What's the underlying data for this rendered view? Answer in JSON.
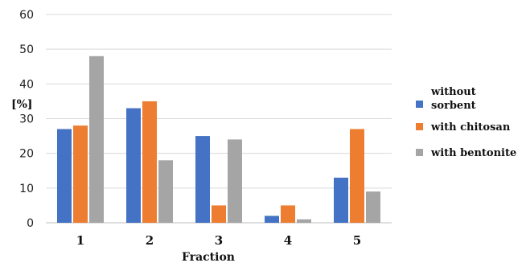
{
  "chart_data": {
    "type": "bar",
    "categories": [
      "1",
      "2",
      "3",
      "4",
      "5"
    ],
    "series": [
      {
        "name": "without sorbent",
        "legend_lines": [
          "without",
          "sorbent"
        ],
        "color": "#4472C4",
        "values": [
          27,
          33,
          25,
          2,
          13
        ]
      },
      {
        "name": "with chitosan",
        "legend_lines": [
          "with chitosan"
        ],
        "color": "#ED7D31",
        "values": [
          28,
          35,
          5,
          5,
          27
        ]
      },
      {
        "name": "with bentonite",
        "legend_lines": [
          "with bentonite"
        ],
        "color": "#A5A5A5",
        "values": [
          48,
          18,
          24,
          1,
          9
        ]
      }
    ],
    "xlabel": "Fraction",
    "ylabel": "[%]",
    "ylim": [
      0,
      60
    ],
    "yticks": [
      0,
      10,
      20,
      30,
      40,
      50,
      60
    ],
    "grid": true,
    "legend_position": "right"
  }
}
